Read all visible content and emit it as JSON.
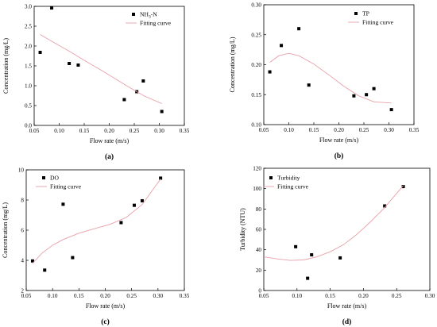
{
  "chart_data": [
    {
      "type": "scatter",
      "panel_label": "(a)",
      "xlabel": "Flow rate (m/s)",
      "ylabel": "Concentration (mg/L)",
      "xlim": [
        0.05,
        0.35
      ],
      "ylim": [
        0.0,
        3.0
      ],
      "xticks": [
        "0.05",
        "0.10",
        "0.15",
        "0.20",
        "0.25",
        "0.30",
        "0.35"
      ],
      "yticks": [
        "0.0",
        "0.5",
        "1.0",
        "1.5",
        "2.0",
        "2.5",
        "3.0"
      ],
      "legend_position": "top-right",
      "series": [
        {
          "name": "NH3-N",
          "kind": "points",
          "color": "#000000",
          "x": [
            0.062,
            0.085,
            0.12,
            0.138,
            0.23,
            0.255,
            0.268,
            0.305
          ],
          "y": [
            1.84,
            2.96,
            1.56,
            1.52,
            0.65,
            0.85,
            1.12,
            0.35
          ]
        },
        {
          "name": "Fitting curve",
          "kind": "curve",
          "color": "#e8a0a8",
          "x": [
            0.062,
            0.085,
            0.12,
            0.15,
            0.18,
            0.21,
            0.24,
            0.27,
            0.305
          ],
          "y": [
            2.29,
            2.12,
            1.87,
            1.64,
            1.42,
            1.19,
            0.96,
            0.74,
            0.55
          ]
        }
      ]
    },
    {
      "type": "scatter",
      "panel_label": "(b)",
      "xlabel": "Flow rate (m/s)",
      "ylabel": "Concentration (mg/L)",
      "xlim": [
        0.05,
        0.35
      ],
      "ylim": [
        0.1,
        0.3
      ],
      "xticks": [
        "0.05",
        "0.10",
        "0.15",
        "0.20",
        "0.25",
        "0.30",
        "0.35"
      ],
      "yticks": [
        "0.10",
        "0.15",
        "0.20",
        "0.25",
        "0.30"
      ],
      "legend_position": "top-right",
      "series": [
        {
          "name": "TP",
          "kind": "points",
          "color": "#000000",
          "x": [
            0.062,
            0.085,
            0.12,
            0.14,
            0.23,
            0.255,
            0.27,
            0.305
          ],
          "y": [
            0.188,
            0.232,
            0.26,
            0.166,
            0.148,
            0.15,
            0.16,
            0.125
          ]
        },
        {
          "name": "Fitting curve",
          "kind": "curve",
          "color": "#e8a0a8",
          "x": [
            0.062,
            0.08,
            0.1,
            0.12,
            0.15,
            0.18,
            0.21,
            0.24,
            0.27,
            0.305
          ],
          "y": [
            0.204,
            0.215,
            0.219,
            0.215,
            0.201,
            0.183,
            0.164,
            0.148,
            0.138,
            0.136
          ]
        }
      ]
    },
    {
      "type": "scatter",
      "panel_label": "(c)",
      "xlabel": "Flow rate (m/s)",
      "ylabel": "Concentration (mg/L)",
      "xlim": [
        0.05,
        0.35
      ],
      "ylim": [
        2,
        10
      ],
      "xticks": [
        "0.05",
        "0.10",
        "0.15",
        "0.20",
        "0.25",
        "0.30",
        "0.35"
      ],
      "yticks": [
        "2",
        "4",
        "6",
        "8",
        "10"
      ],
      "legend_position": "top-left",
      "series": [
        {
          "name": "DO",
          "kind": "points",
          "color": "#000000",
          "x": [
            0.062,
            0.085,
            0.12,
            0.138,
            0.23,
            0.255,
            0.27,
            0.305
          ],
          "y": [
            3.96,
            3.35,
            7.72,
            4.18,
            6.5,
            7.65,
            7.95,
            9.45
          ]
        },
        {
          "name": "Fitting curve",
          "kind": "curve",
          "color": "#e8a0a8",
          "x": [
            0.062,
            0.08,
            0.1,
            0.12,
            0.15,
            0.18,
            0.21,
            0.24,
            0.27,
            0.305
          ],
          "y": [
            3.8,
            4.48,
            5.0,
            5.38,
            5.8,
            6.1,
            6.4,
            6.85,
            7.7,
            9.4
          ]
        }
      ]
    },
    {
      "type": "scatter",
      "panel_label": "(d)",
      "xlabel": "Flow rate (m/s)",
      "ylabel": "Turbidity (NTU)",
      "xlim": [
        0.05,
        0.3
      ],
      "ylim": [
        0,
        120
      ],
      "xticks": [
        "0.05",
        "0.10",
        "0.15",
        "0.20",
        "0.25",
        "0.30"
      ],
      "yticks": [
        "0",
        "20",
        "40",
        "60",
        "80",
        "100",
        "120"
      ],
      "legend_position": "top-left",
      "series": [
        {
          "name": "Turbidity",
          "kind": "points",
          "color": "#000000",
          "x": [
            0.098,
            0.116,
            0.122,
            0.165,
            0.232,
            0.26
          ],
          "y": [
            43,
            12,
            35,
            32,
            83,
            102
          ]
        },
        {
          "name": "Fitting curve",
          "kind": "curve",
          "color": "#e8a0a8",
          "x": [
            0.05,
            0.07,
            0.09,
            0.11,
            0.13,
            0.15,
            0.17,
            0.19,
            0.21,
            0.23,
            0.26
          ],
          "y": [
            33,
            31,
            29.5,
            30,
            33,
            38,
            45,
            55,
            67,
            80,
            103
          ]
        }
      ]
    }
  ]
}
